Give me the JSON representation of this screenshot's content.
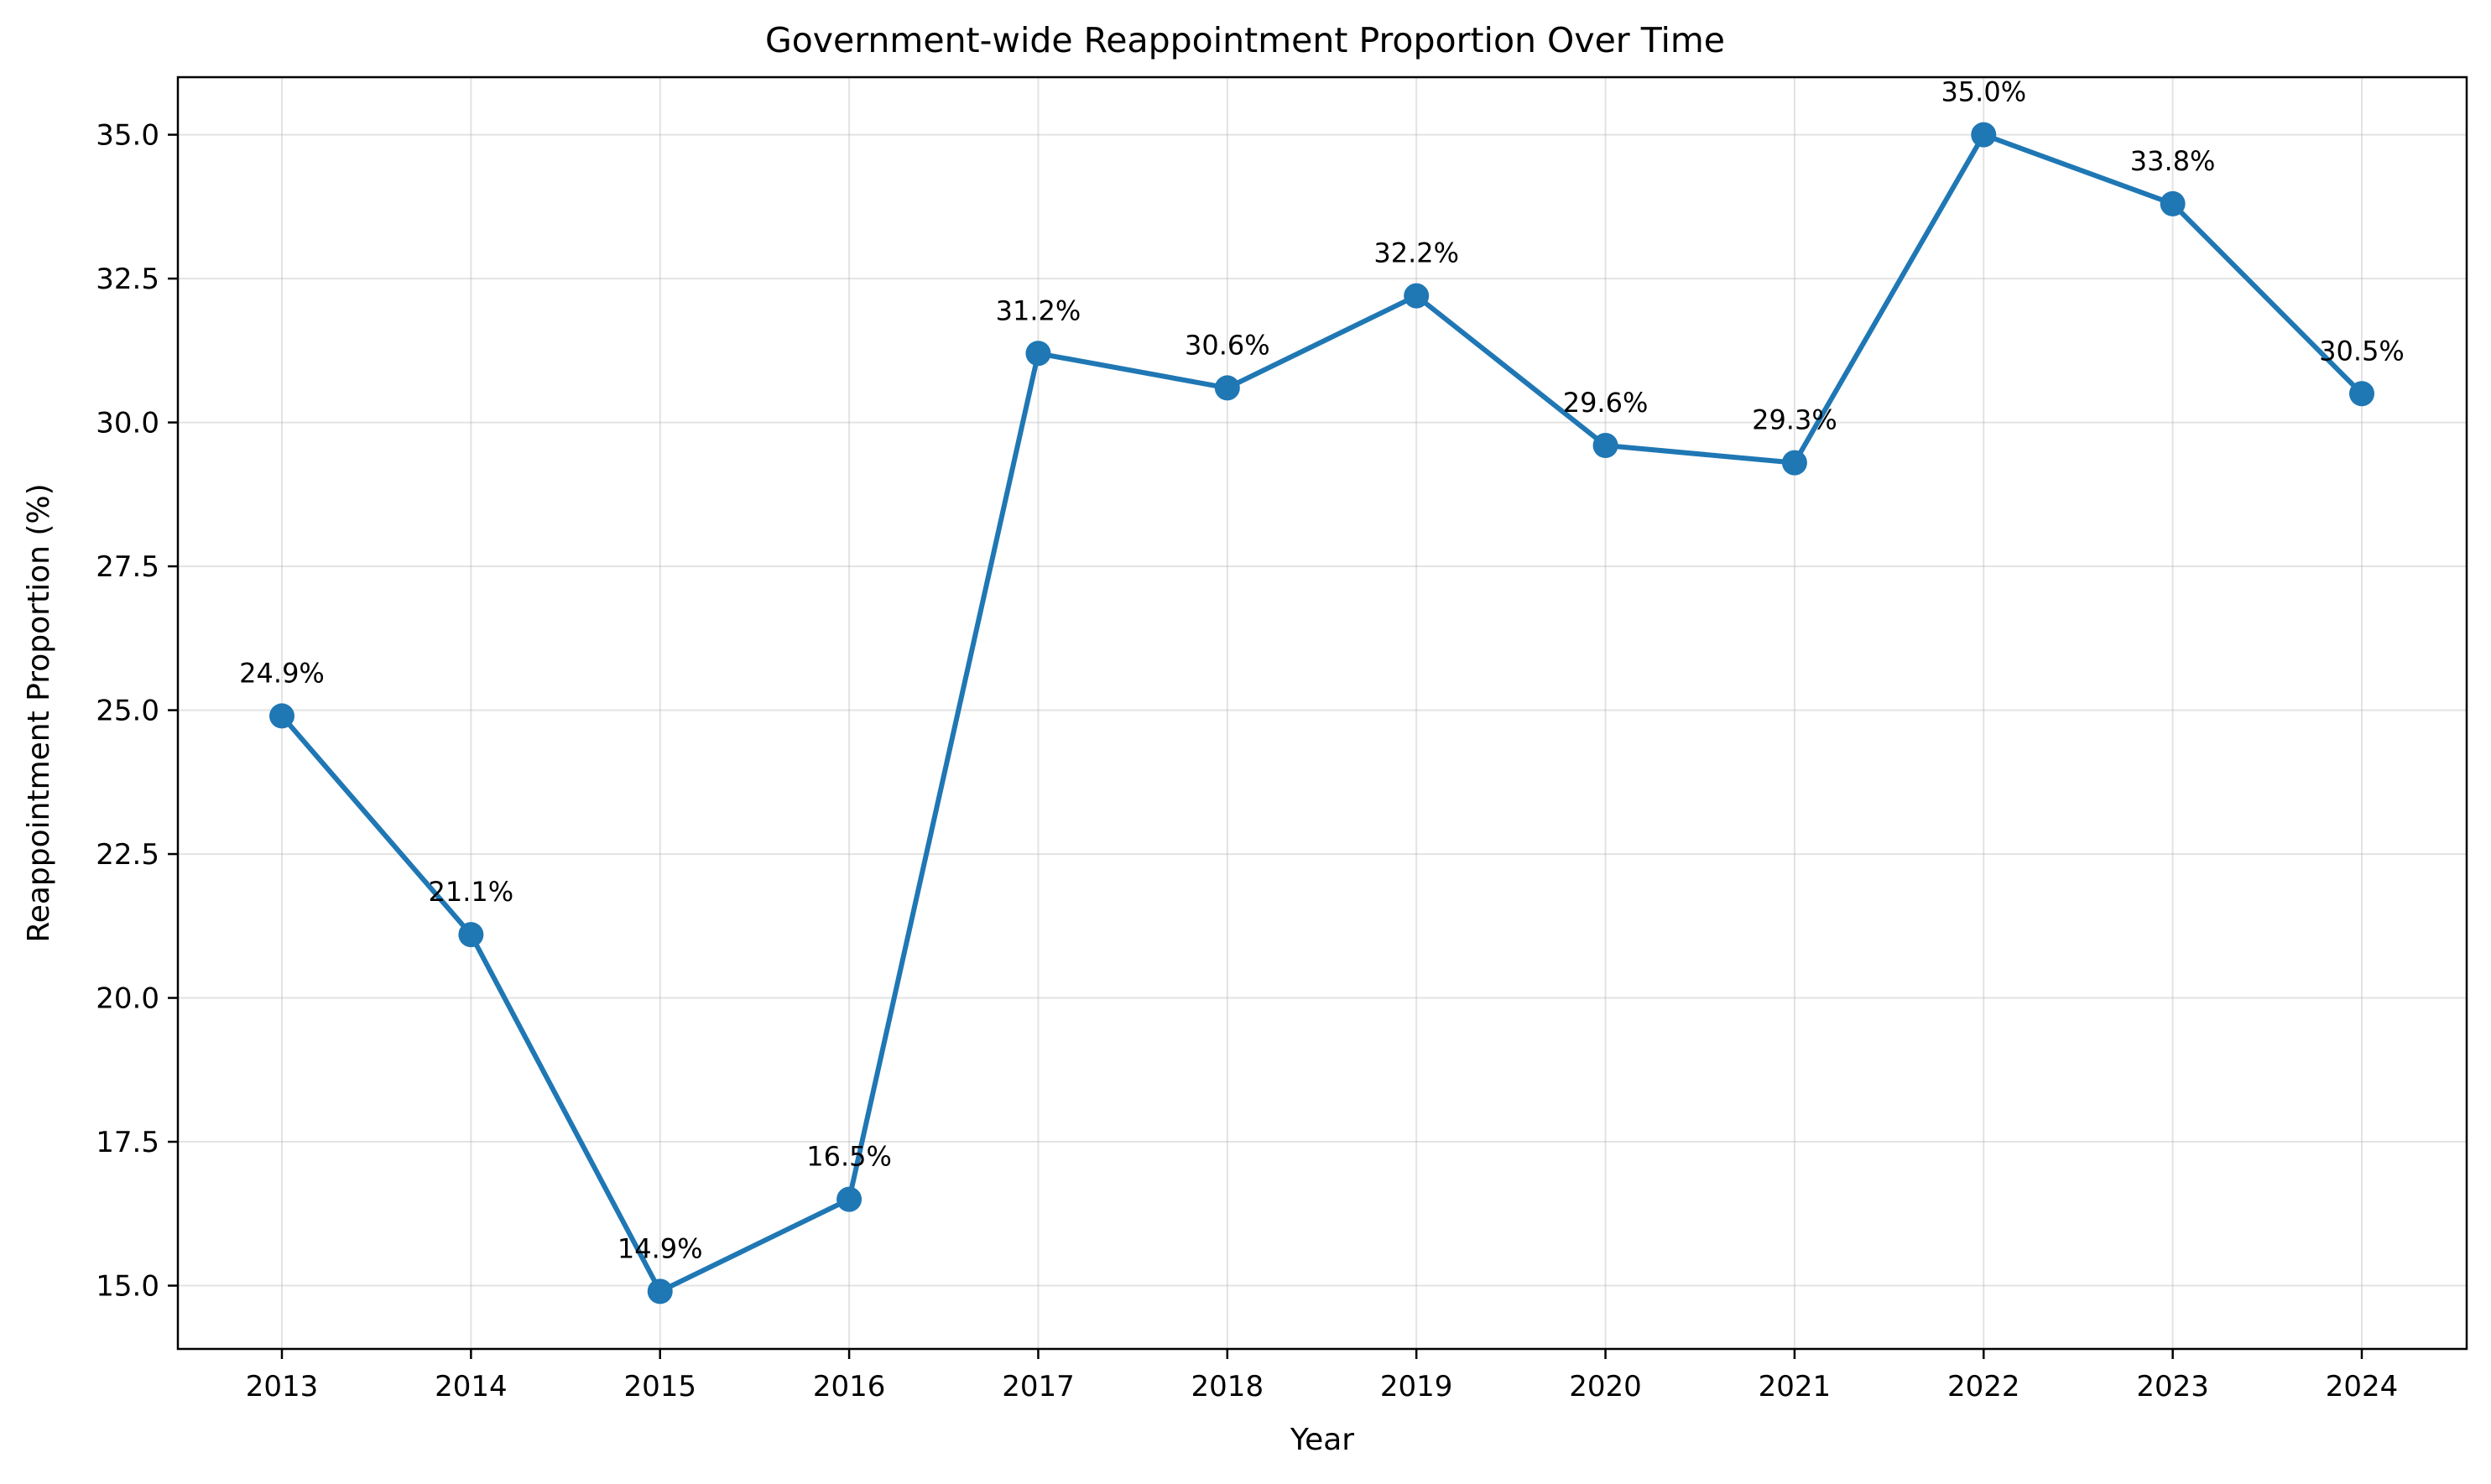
{
  "chart_data": {
    "type": "line",
    "title": "Government-wide Reappointment Proportion Over Time",
    "xlabel": "Year",
    "ylabel": "Reappointment Proportion (%)",
    "x": [
      "2013",
      "2014",
      "2015",
      "2016",
      "2017",
      "2018",
      "2019",
      "2020",
      "2021",
      "2022",
      "2023",
      "2024"
    ],
    "values": [
      24.9,
      21.1,
      14.9,
      16.5,
      31.2,
      30.6,
      32.2,
      29.6,
      29.3,
      35.0,
      33.8,
      30.5
    ],
    "data_labels": [
      "24.9%",
      "21.1%",
      "14.9%",
      "16.5%",
      "31.2%",
      "30.6%",
      "32.2%",
      "29.6%",
      "29.3%",
      "35.0%",
      "33.8%",
      "30.5%"
    ],
    "yticks": [
      "15.0",
      "17.5",
      "20.0",
      "22.5",
      "25.0",
      "27.5",
      "30.0",
      "32.5",
      "35.0"
    ],
    "ylim": [
      13.9,
      36.0
    ],
    "grid": true,
    "line_color": "#1f77b4",
    "marker": "circle"
  }
}
